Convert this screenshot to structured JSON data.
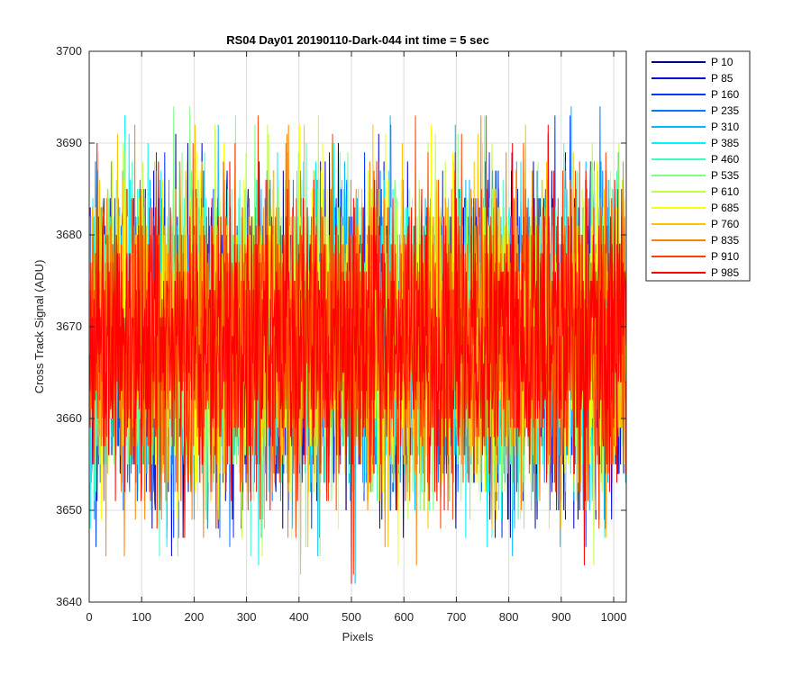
{
  "chart_data": {
    "type": "line",
    "title": "RS04 Day01 20190110-Dark-044 int time = 5 sec",
    "xlabel": "Pixels",
    "ylabel": "Cross Track Signal (ADU)",
    "xlim": [
      0,
      1024
    ],
    "ylim": [
      3640,
      3700
    ],
    "xticks": [
      0,
      100,
      200,
      300,
      400,
      500,
      600,
      700,
      800,
      900,
      1000
    ],
    "yticks": [
      3640,
      3650,
      3660,
      3670,
      3680,
      3690,
      3700
    ],
    "grid": true,
    "legend_position": "outside-top-right",
    "x_range": {
      "start": 1,
      "end": 1024
    },
    "series": [
      {
        "name": "P 10",
        "color": "#00008f",
        "mean": 3668.7,
        "std": 8.0,
        "min": 3647,
        "max": 3694
      },
      {
        "name": "P 85",
        "color": "#0000d4",
        "mean": 3668.7,
        "std": 8.0,
        "min": 3645,
        "max": 3697
      },
      {
        "name": "P 160",
        "color": "#0034ff",
        "mean": 3668.7,
        "std": 8.0,
        "min": 3646,
        "max": 3695
      },
      {
        "name": "P 235",
        "color": "#0078ff",
        "mean": 3668.7,
        "std": 8.0,
        "min": 3642,
        "max": 3694
      },
      {
        "name": "P 310",
        "color": "#00b8ff",
        "mean": 3668.7,
        "std": 8.0,
        "min": 3642,
        "max": 3694
      },
      {
        "name": "P 385",
        "color": "#00f4ff",
        "mean": 3668.7,
        "std": 8.0,
        "min": 3642,
        "max": 3695
      },
      {
        "name": "P 460",
        "color": "#3dffc2",
        "mean": 3668.7,
        "std": 8.0,
        "min": 3645,
        "max": 3694
      },
      {
        "name": "P 535",
        "color": "#7dff82",
        "mean": 3668.7,
        "std": 8.0,
        "min": 3645,
        "max": 3694
      },
      {
        "name": "P 610",
        "color": "#c2ff3d",
        "mean": 3668.7,
        "std": 8.0,
        "min": 3642,
        "max": 3694
      },
      {
        "name": "P 685",
        "color": "#ffff00",
        "mean": 3668.7,
        "std": 8.0,
        "min": 3643,
        "max": 3694
      },
      {
        "name": "P 760",
        "color": "#ffc300",
        "mean": 3668.7,
        "std": 8.0,
        "min": 3643,
        "max": 3692
      },
      {
        "name": "P 835",
        "color": "#ff8200",
        "mean": 3668.7,
        "std": 8.0,
        "min": 3643,
        "max": 3693
      },
      {
        "name": "P 910",
        "color": "#ff4100",
        "mean": 3668.7,
        "std": 8.0,
        "min": 3642,
        "max": 3693
      },
      {
        "name": "P 985",
        "color": "#ff0000",
        "mean": 3668.7,
        "std": 8.0,
        "min": 3642,
        "max": 3693
      }
    ]
  }
}
